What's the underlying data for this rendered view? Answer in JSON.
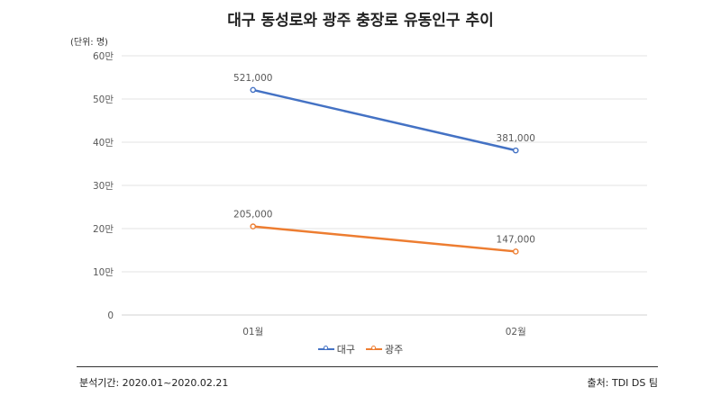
{
  "header": {
    "title": "대구 동성로와 광주 충장로 유동인구 추이",
    "unit": "(단위: 명)"
  },
  "footer": {
    "period": "분석기간: 2020.01~2020.02.21",
    "source": "출처: TDI DS 팀"
  },
  "chart_data": {
    "type": "line",
    "title": "대구 동성로와 광주 충장로 유동인구 추이",
    "categories": [
      "01월",
      "02월"
    ],
    "y_ticks": [
      0,
      100000,
      200000,
      300000,
      400000,
      500000,
      600000
    ],
    "y_tick_labels": [
      "0",
      "10만",
      "20만",
      "30만",
      "40만",
      "50만",
      "60만"
    ],
    "ylim": [
      0,
      600000
    ],
    "grid": true,
    "legend": "bottom",
    "series": [
      {
        "name": "대구",
        "values": [
          521000,
          381000
        ],
        "labels": [
          "521,000",
          "381,000"
        ],
        "color": "#4472c4"
      },
      {
        "name": "광주",
        "values": [
          205000,
          147000
        ],
        "labels": [
          "205,000",
          "147,000"
        ],
        "color": "#ed7d31"
      }
    ]
  }
}
